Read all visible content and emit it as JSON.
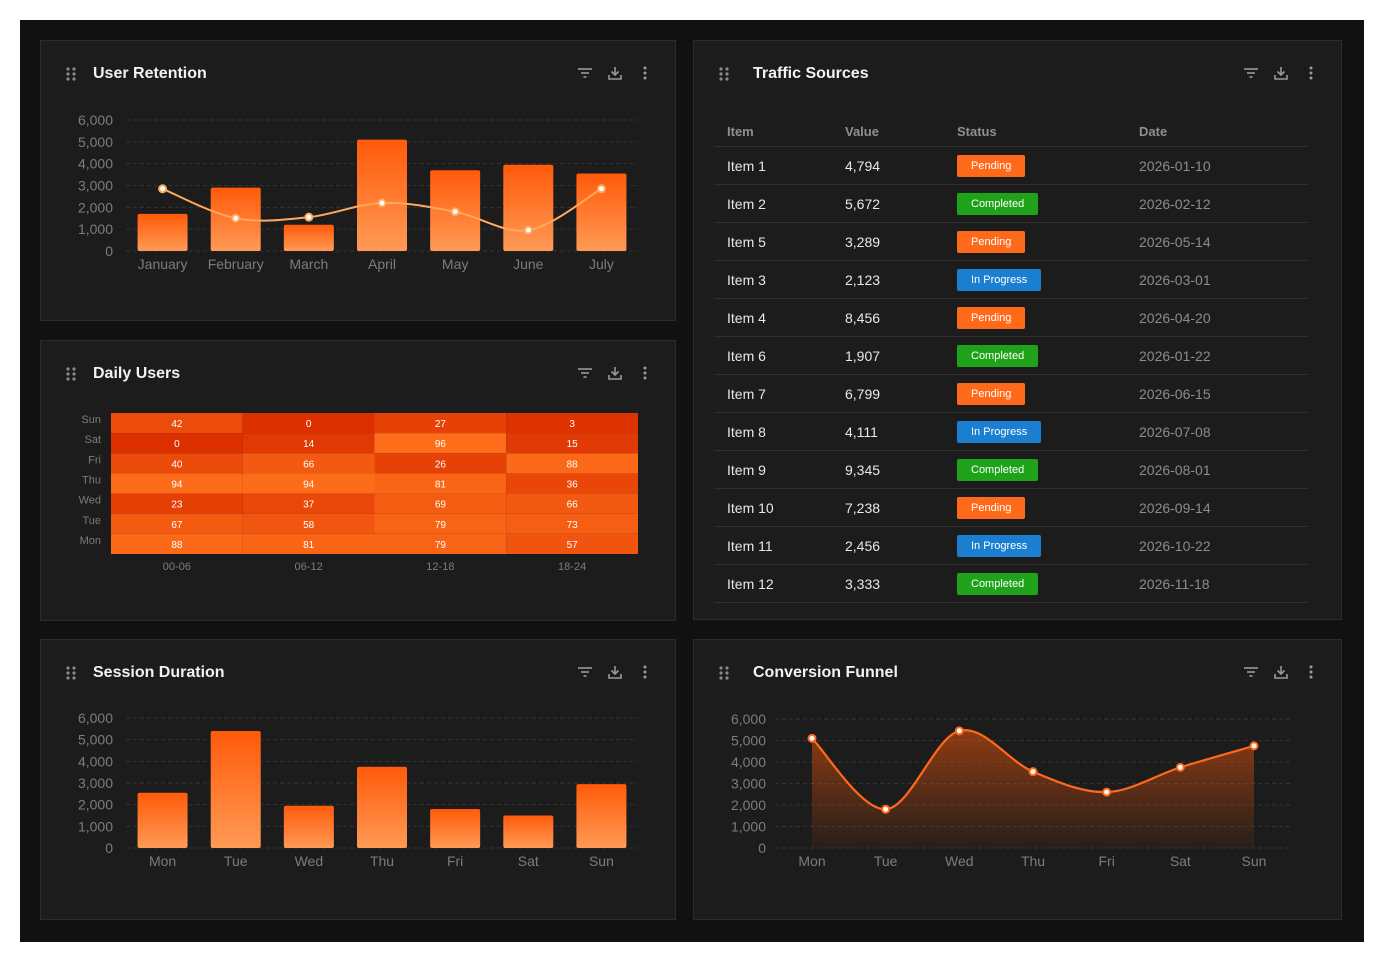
{
  "colors": {
    "accent": "#ff6a1a",
    "line": "#ffa95e",
    "pending": "#ff6a1a",
    "completed": "#1fa31a",
    "in_progress": "#1b7fd1"
  },
  "icons": [
    "drag-handle-icon",
    "filter-icon",
    "download-icon",
    "more-vertical-icon"
  ],
  "panels": {
    "retention": {
      "title": "User Retention"
    },
    "daily": {
      "title": "Daily Users"
    },
    "session": {
      "title": "Session Duration"
    },
    "traffic": {
      "title": "Traffic Sources"
    },
    "funnel": {
      "title": "Conversion Funnel"
    }
  },
  "table": {
    "headers": [
      "Item",
      "Value",
      "Status",
      "Date"
    ],
    "rows": [
      [
        "Item 1",
        "4,794",
        "Pending",
        "2026-01-10"
      ],
      [
        "Item 2",
        "5,672",
        "Completed",
        "2026-02-12"
      ],
      [
        "Item 5",
        "3,289",
        "Pending",
        "2026-05-14"
      ],
      [
        "Item 3",
        "2,123",
        "In Progress",
        "2026-03-01"
      ],
      [
        "Item 4",
        "8,456",
        "Pending",
        "2026-04-20"
      ],
      [
        "Item 6",
        "1,907",
        "Completed",
        "2026-01-22"
      ],
      [
        "Item 7",
        "6,799",
        "Pending",
        "2026-06-15"
      ],
      [
        "Item 8",
        "4,111",
        "In Progress",
        "2026-07-08"
      ],
      [
        "Item 9",
        "9,345",
        "Completed",
        "2026-08-01"
      ],
      [
        "Item 10",
        "7,238",
        "Pending",
        "2026-09-14"
      ],
      [
        "Item 11",
        "2,456",
        "In Progress",
        "2026-10-22"
      ],
      [
        "Item 12",
        "3,333",
        "Completed",
        "2026-11-18"
      ]
    ]
  },
  "chart_data": [
    {
      "id": "retention",
      "type": "bar",
      "title": "User Retention",
      "categories": [
        "January",
        "February",
        "March",
        "April",
        "May",
        "June",
        "July"
      ],
      "ylim": [
        0,
        6000
      ],
      "yticks": [
        "0",
        "1,000",
        "2,000",
        "3,000",
        "4,000",
        "5,000",
        "6,000"
      ],
      "grid": true,
      "series": [
        {
          "type": "bar",
          "values": [
            1700,
            2900,
            1200,
            5100,
            3700,
            3950,
            3550
          ]
        },
        {
          "type": "line",
          "values": [
            2850,
            1500,
            1550,
            2200,
            1800,
            950,
            2850
          ]
        }
      ]
    },
    {
      "id": "daily",
      "type": "heatmap",
      "title": "Daily Users",
      "x": [
        "00-06",
        "06-12",
        "12-18",
        "18-24"
      ],
      "y": [
        "Sun",
        "Sat",
        "Fri",
        "Thu",
        "Wed",
        "Tue",
        "Mon"
      ],
      "values": [
        [
          42,
          0,
          27,
          3
        ],
        [
          0,
          14,
          96,
          15
        ],
        [
          40,
          66,
          26,
          88
        ],
        [
          94,
          94,
          81,
          36
        ],
        [
          23,
          37,
          69,
          66
        ],
        [
          67,
          58,
          79,
          73
        ],
        [
          88,
          81,
          79,
          57
        ]
      ]
    },
    {
      "id": "session",
      "type": "bar",
      "title": "Session Duration",
      "categories": [
        "Mon",
        "Tue",
        "Wed",
        "Thu",
        "Fri",
        "Sat",
        "Sun"
      ],
      "ylim": [
        0,
        6000
      ],
      "yticks": [
        "0",
        "1,000",
        "2,000",
        "3,000",
        "4,000",
        "5,000",
        "6,000"
      ],
      "grid": true,
      "values": [
        2550,
        5400,
        1950,
        3750,
        1800,
        1500,
        2950
      ]
    },
    {
      "id": "funnel",
      "type": "area",
      "title": "Conversion Funnel",
      "categories": [
        "Mon",
        "Tue",
        "Wed",
        "Thu",
        "Fri",
        "Sat",
        "Sun"
      ],
      "ylim": [
        0,
        6000
      ],
      "yticks": [
        "0",
        "1,000",
        "2,000",
        "3,000",
        "4,000",
        "5,000",
        "6,000"
      ],
      "grid": true,
      "values": [
        5100,
        1800,
        5450,
        3550,
        2600,
        3750,
        4750
      ]
    }
  ]
}
